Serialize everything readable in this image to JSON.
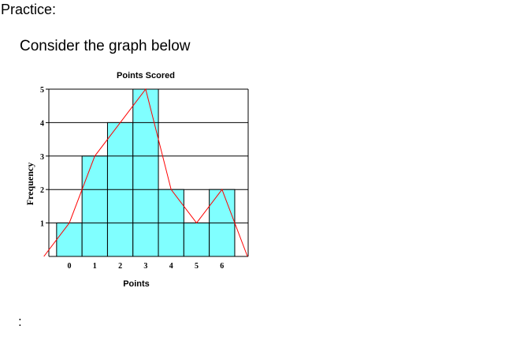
{
  "page": {
    "heading": "Practice:",
    "instruction": "Consider the graph below",
    "trailing_text": ":"
  },
  "colors": {
    "bar_fill": "#80ffff",
    "polygon_line": "#ff0000",
    "grid": "#000000"
  },
  "chart_data": {
    "type": "bar",
    "title": "Points Scored",
    "xlabel": "Points",
    "ylabel": "Frequency",
    "categories": [
      "0",
      "1",
      "2",
      "3",
      "4",
      "5",
      "6"
    ],
    "values": [
      1,
      3,
      4,
      5,
      2,
      1,
      2
    ],
    "ylim": [
      0,
      5
    ],
    "y_ticks": [
      "1",
      "2",
      "3",
      "4",
      "5"
    ],
    "grid": true,
    "overlay": {
      "type": "frequency-polygon",
      "values": [
        0,
        1,
        3,
        4,
        5,
        2,
        1,
        2,
        0
      ]
    }
  }
}
